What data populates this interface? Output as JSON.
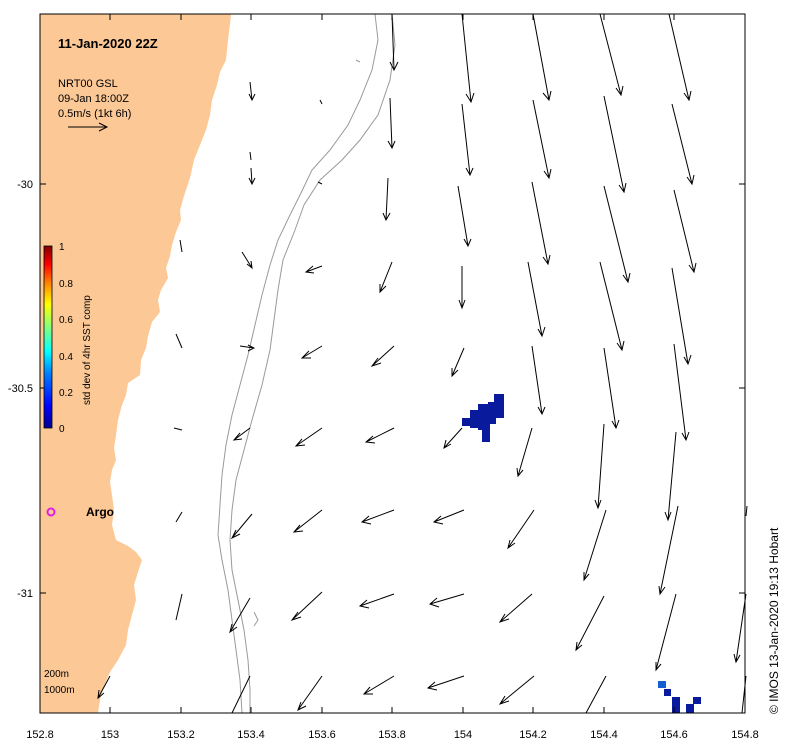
{
  "map": {
    "timestamp": "11-Jan-2020 22Z",
    "product_label": "NRT00 GSL",
    "product_time": "09-Jan 18:00Z",
    "scale_label": "0.5m/s (1kt 6h)",
    "credit": "© IMOS 13-Jan-2020 19:13 Hobart",
    "argo_label": "Argo",
    "contour_labels": [
      "200m",
      "1000m"
    ],
    "colors": {
      "land": "#fbc896",
      "contour": "#9a9a9a",
      "argo": "#e020e0",
      "sst_patch": "#0a1a9c",
      "sst_patch_light": "#1560d0"
    }
  },
  "colorbar": {
    "label": "std dev of 4hr SST comp",
    "ticks": [
      "1",
      "0.8",
      "0.6",
      "0.4",
      "0.2",
      "0"
    ],
    "colors": [
      "#7f0000",
      "#ff0000",
      "#ff8000",
      "#ffff00",
      "#80ff80",
      "#00ffff",
      "#0080ff",
      "#0000ff",
      "#00008f"
    ]
  },
  "x_axis": {
    "ticks": [
      "152.8",
      "153",
      "153.2",
      "153.4",
      "153.6",
      "153.8",
      "154",
      "154.2",
      "154.4",
      "154.6",
      "154.8"
    ]
  },
  "y_axis": {
    "ticks": [
      "-30",
      "-30.5",
      "-31"
    ]
  }
}
